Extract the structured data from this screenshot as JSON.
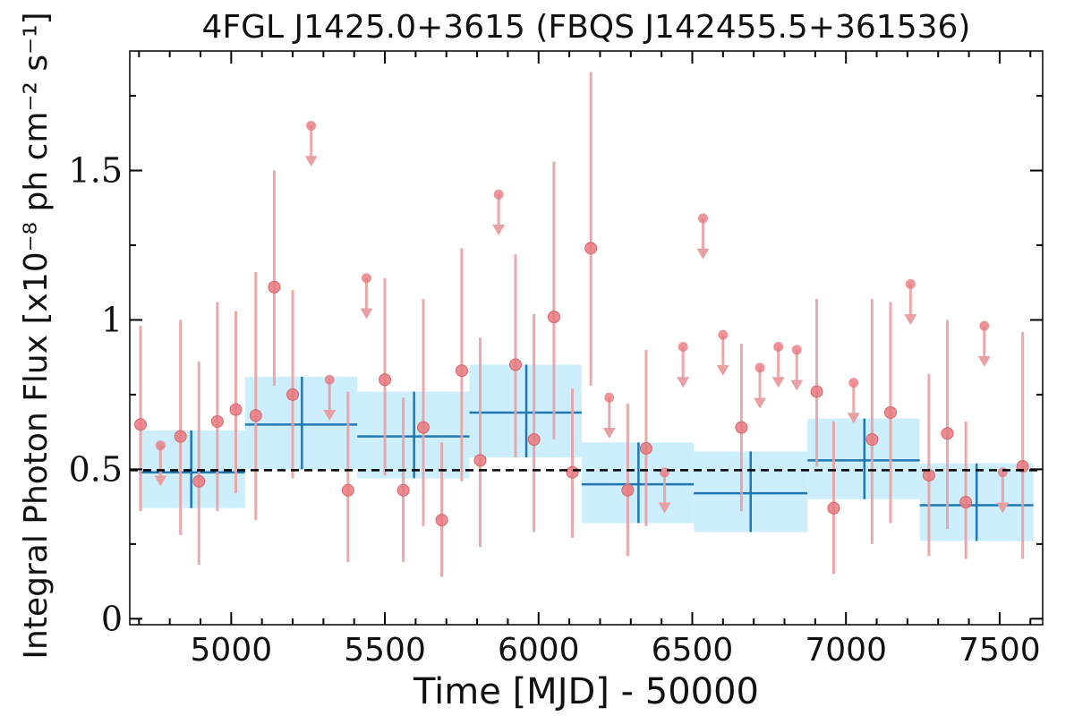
{
  "chart_data": {
    "type": "scatter",
    "title": "4FGL J1425.0+3615 (FBQS J142455.5+361536)",
    "xlabel": "Time [MJD] - 50000",
    "ylabel": "Integral Photon Flux [x10⁻⁸ ph cm⁻² s⁻¹]",
    "xlim": [
      4670,
      7640
    ],
    "ylim": [
      -0.02,
      1.9
    ],
    "x_ticks": [
      5000,
      5500,
      6000,
      6500,
      7000,
      7500
    ],
    "x_tick_labels": [
      "5000",
      "5500",
      "6000",
      "6500",
      "7000",
      "7500"
    ],
    "y_ticks": [
      0,
      0.5,
      1,
      1.5
    ],
    "y_tick_labels": [
      "0",
      "0.5",
      "1",
      "1.5"
    ],
    "grid": false,
    "reference_line": {
      "y": 0.497,
      "style": "dashed",
      "color": "#000000"
    },
    "colors": {
      "points": "#e8797e",
      "errorbars": "#e8a0a2",
      "bin_fill": "#cdeefc",
      "bin_line": "#1f77b4"
    },
    "binned_series": [
      {
        "x_start": 4700,
        "x_end": 5045,
        "x_center": 4870,
        "y": 0.49,
        "y_low": 0.37,
        "y_high": 0.63
      },
      {
        "x_start": 5045,
        "x_end": 5410,
        "x_center": 5230,
        "y": 0.65,
        "y_low": 0.5,
        "y_high": 0.81
      },
      {
        "x_start": 5410,
        "x_end": 5775,
        "x_center": 5595,
        "y": 0.61,
        "y_low": 0.47,
        "y_high": 0.76
      },
      {
        "x_start": 5775,
        "x_end": 6140,
        "x_center": 5960,
        "y": 0.69,
        "y_low": 0.54,
        "y_high": 0.85
      },
      {
        "x_start": 6140,
        "x_end": 6505,
        "x_center": 6325,
        "y": 0.45,
        "y_low": 0.32,
        "y_high": 0.59
      },
      {
        "x_start": 6505,
        "x_end": 6875,
        "x_center": 6690,
        "y": 0.42,
        "y_low": 0.29,
        "y_high": 0.56
      },
      {
        "x_start": 6875,
        "x_end": 7240,
        "x_center": 7060,
        "y": 0.53,
        "y_low": 0.4,
        "y_high": 0.67
      },
      {
        "x_start": 7240,
        "x_end": 7610,
        "x_center": 7425,
        "y": 0.38,
        "y_low": 0.26,
        "y_high": 0.52
      }
    ],
    "detections": [
      {
        "x": 4705,
        "y": 0.65,
        "y_low": 0.36,
        "y_high": 0.98
      },
      {
        "x": 4835,
        "y": 0.61,
        "y_low": 0.28,
        "y_high": 1.0
      },
      {
        "x": 4895,
        "y": 0.46,
        "y_low": 0.18,
        "y_high": 0.86
      },
      {
        "x": 4955,
        "y": 0.66,
        "y_low": 0.36,
        "y_high": 1.06
      },
      {
        "x": 5015,
        "y": 0.7,
        "y_low": 0.42,
        "y_high": 1.03
      },
      {
        "x": 5080,
        "y": 0.68,
        "y_low": 0.33,
        "y_high": 1.16
      },
      {
        "x": 5140,
        "y": 1.11,
        "y_low": 0.78,
        "y_high": 1.5
      },
      {
        "x": 5200,
        "y": 0.75,
        "y_low": 0.47,
        "y_high": 1.1
      },
      {
        "x": 5380,
        "y": 0.43,
        "y_low": 0.19,
        "y_high": 0.76
      },
      {
        "x": 5500,
        "y": 0.8,
        "y_low": 0.48,
        "y_high": 1.14
      },
      {
        "x": 5560,
        "y": 0.43,
        "y_low": 0.19,
        "y_high": 0.74
      },
      {
        "x": 5625,
        "y": 0.64,
        "y_low": 0.31,
        "y_high": 1.07
      },
      {
        "x": 5685,
        "y": 0.33,
        "y_low": 0.14,
        "y_high": 0.59
      },
      {
        "x": 5750,
        "y": 0.83,
        "y_low": 0.46,
        "y_high": 1.24
      },
      {
        "x": 5810,
        "y": 0.53,
        "y_low": 0.24,
        "y_high": 0.94
      },
      {
        "x": 5925,
        "y": 0.85,
        "y_low": 0.54,
        "y_high": 1.22
      },
      {
        "x": 5985,
        "y": 0.6,
        "y_low": 0.29,
        "y_high": 1.02
      },
      {
        "x": 6050,
        "y": 1.01,
        "y_low": 0.6,
        "y_high": 1.53
      },
      {
        "x": 6110,
        "y": 0.49,
        "y_low": 0.27,
        "y_high": 0.77
      },
      {
        "x": 6170,
        "y": 1.24,
        "y_low": 0.78,
        "y_high": 1.83
      },
      {
        "x": 6290,
        "y": 0.43,
        "y_low": 0.21,
        "y_high": 0.72
      },
      {
        "x": 6350,
        "y": 0.57,
        "y_low": 0.31,
        "y_high": 0.9
      },
      {
        "x": 6660,
        "y": 0.64,
        "y_low": 0.36,
        "y_high": 0.92
      },
      {
        "x": 6905,
        "y": 0.76,
        "y_low": 0.51,
        "y_high": 1.07
      },
      {
        "x": 6960,
        "y": 0.37,
        "y_low": 0.15,
        "y_high": 0.66
      },
      {
        "x": 7085,
        "y": 0.6,
        "y_low": 0.25,
        "y_high": 1.07
      },
      {
        "x": 7145,
        "y": 0.69,
        "y_low": 0.32,
        "y_high": 1.06
      },
      {
        "x": 7270,
        "y": 0.48,
        "y_low": 0.21,
        "y_high": 0.82
      },
      {
        "x": 7330,
        "y": 0.62,
        "y_low": 0.3,
        "y_high": 1.0
      },
      {
        "x": 7390,
        "y": 0.39,
        "y_low": 0.2,
        "y_high": 0.66
      },
      {
        "x": 7575,
        "y": 0.51,
        "y_low": 0.2,
        "y_high": 0.96
      }
    ],
    "upper_limits": [
      {
        "x": 4770,
        "y": 0.58
      },
      {
        "x": 5260,
        "y": 1.65
      },
      {
        "x": 5320,
        "y": 0.8
      },
      {
        "x": 5440,
        "y": 1.14
      },
      {
        "x": 5870,
        "y": 1.42
      },
      {
        "x": 6230,
        "y": 0.74
      },
      {
        "x": 6410,
        "y": 0.49
      },
      {
        "x": 6470,
        "y": 0.91
      },
      {
        "x": 6535,
        "y": 1.34
      },
      {
        "x": 6600,
        "y": 0.95
      },
      {
        "x": 6720,
        "y": 0.84
      },
      {
        "x": 6780,
        "y": 0.91
      },
      {
        "x": 6840,
        "y": 0.9
      },
      {
        "x": 7025,
        "y": 0.79
      },
      {
        "x": 7210,
        "y": 1.12
      },
      {
        "x": 7450,
        "y": 0.98
      },
      {
        "x": 7510,
        "y": 0.49
      }
    ]
  }
}
